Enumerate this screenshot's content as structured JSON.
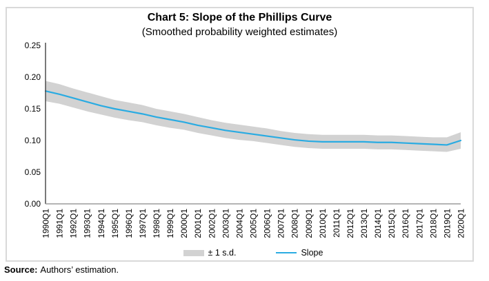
{
  "figure": {
    "title": "Chart 5: Slope of the Phillips Curve",
    "subtitle": "(Smoothed probability weighted estimates)",
    "source_label": "Source:",
    "source_text": "Authors’ estimation."
  },
  "legend": {
    "band_label": "± 1 s.d.",
    "line_label": "Slope"
  },
  "colors": {
    "line": "#29ABE2",
    "band": "#D2D2D2",
    "border": "#D9D9D9",
    "y_axis": "#404040",
    "x_axis": "#9C9C9C"
  },
  "chart_data": {
    "type": "line",
    "title": "Chart 5: Slope of the Phillips Curve",
    "subtitle": "(Smoothed probability weighted estimates)",
    "x_tick_labels": [
      "1990Q1",
      "1991Q1",
      "1992Q1",
      "1993Q1",
      "1994Q1",
      "1995Q1",
      "1996Q1",
      "1997Q1",
      "1998Q1",
      "1999Q1",
      "2000Q1",
      "2001Q1",
      "2002Q1",
      "2003Q1",
      "2004Q1",
      "2005Q1",
      "2006Q1",
      "2007Q1",
      "2008Q1",
      "2009Q1",
      "2010Q1",
      "2011Q1",
      "2012Q1",
      "2013Q1",
      "2014Q1",
      "2015Q1",
      "2016Q1",
      "2017Q1",
      "2018Q1",
      "2019Q1",
      "2020Q1"
    ],
    "y_ticks": [
      0.0,
      0.05,
      0.1,
      0.15,
      0.2,
      0.25
    ],
    "ylim": [
      0,
      0.25
    ],
    "grid": false,
    "legend_position": "bottom",
    "series": [
      {
        "name": "Slope",
        "values": [
          0.178,
          0.173,
          0.167,
          0.161,
          0.155,
          0.15,
          0.146,
          0.142,
          0.137,
          0.133,
          0.129,
          0.124,
          0.12,
          0.116,
          0.113,
          0.11,
          0.107,
          0.104,
          0.101,
          0.099,
          0.098,
          0.098,
          0.098,
          0.098,
          0.097,
          0.097,
          0.096,
          0.095,
          0.094,
          0.093,
          0.1
        ]
      },
      {
        "name": "+1 s.d. (band upper)",
        "values": [
          0.194,
          0.189,
          0.182,
          0.176,
          0.17,
          0.164,
          0.16,
          0.156,
          0.15,
          0.146,
          0.142,
          0.137,
          0.132,
          0.128,
          0.125,
          0.122,
          0.119,
          0.115,
          0.112,
          0.11,
          0.109,
          0.109,
          0.109,
          0.109,
          0.108,
          0.108,
          0.107,
          0.106,
          0.105,
          0.105,
          0.113
        ]
      },
      {
        "name": "-1 s.d. (band lower)",
        "values": [
          0.162,
          0.158,
          0.152,
          0.146,
          0.141,
          0.136,
          0.132,
          0.129,
          0.124,
          0.12,
          0.117,
          0.112,
          0.108,
          0.104,
          0.101,
          0.099,
          0.096,
          0.093,
          0.09,
          0.088,
          0.087,
          0.087,
          0.087,
          0.087,
          0.086,
          0.086,
          0.085,
          0.084,
          0.083,
          0.082,
          0.087
        ]
      }
    ]
  }
}
